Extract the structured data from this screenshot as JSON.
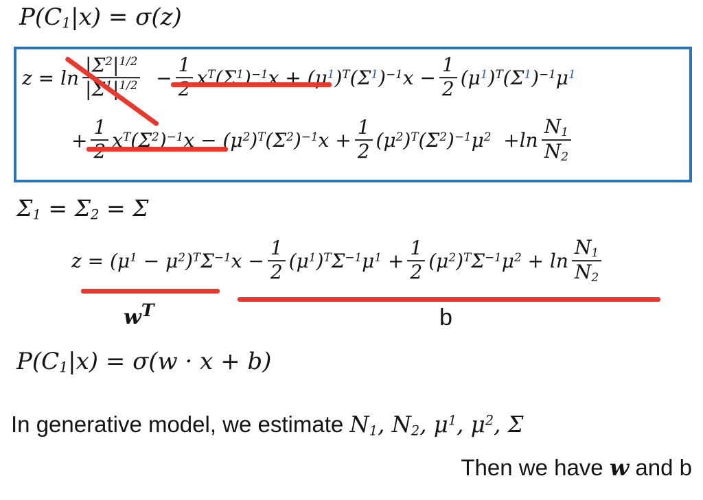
{
  "colors": {
    "annotation_red": "#e8392e",
    "box_border": "#2e74b5",
    "superscript_blue": "#2b5fb0"
  },
  "equations": {
    "posterior_z": [
      {
        "v": "P(C_{1}|x) = σ(z)"
      }
    ],
    "z_full_line1": [
      {
        "v": "z = ln"
      },
      {
        "f": [
          "|Σ^{2}|^{1/2}",
          "|Σ^{1}|^{1/2}"
        ]
      },
      {
        "v": "  −"
      },
      {
        "f": [
          "1",
          "2"
        ]
      },
      {
        "v": "x^{T}(Σ^{1})^{−1}x + (μ^{⟦1⟧})^{T}(Σ^{⟦1⟧})^{−1}x −"
      },
      {
        "f": [
          "1",
          "2"
        ]
      },
      {
        "v": "(μ^{⟦1⟧})^{T}(Σ^{⟦1⟧})^{−1}μ^{⟦1⟧}"
      }
    ],
    "z_full_line2": [
      {
        "v": "+"
      },
      {
        "f": [
          "1",
          "2"
        ]
      },
      {
        "v": "x^{T}(Σ^{2})^{−1}x − (μ^{2})^{T}(Σ^{2})^{−1}x +"
      },
      {
        "f": [
          "1",
          "2"
        ]
      },
      {
        "v": "(μ^{2})^{T}(Σ^{2})^{−1}μ^{2}  +ln"
      },
      {
        "f": [
          "N_{1}",
          "N_{2}"
        ]
      }
    ],
    "sigma_equal": [
      {
        "v": "Σ_{1} = Σ_{2} = Σ"
      }
    ],
    "z_simplified": [
      {
        "v": "z = (μ^{1} − μ^{2})^{T}Σ^{−1}x −"
      },
      {
        "f": [
          "1",
          "2"
        ]
      },
      {
        "v": "(μ^{1})^{T}Σ^{−1}μ^{1} +"
      },
      {
        "f": [
          "1",
          "2"
        ]
      },
      {
        "v": "(μ^{2})^{T}Σ^{−1}μ^{2} + ln"
      },
      {
        "f": [
          "N_{1}",
          "N_{2}"
        ]
      }
    ],
    "posterior_wb": [
      {
        "v": "P(C_{1}|x) = σ(w · x + b)"
      }
    ]
  },
  "labels": {
    "w_transpose": [
      {
        "v": "w^{T}"
      }
    ],
    "b": "b"
  },
  "text": {
    "generative_prefix": "In generative model, we estimate ",
    "generative_math": [
      {
        "v": "N_{1}, N_{2}, μ^{1}, μ^{2}, Σ"
      }
    ],
    "then_prefix": "Then we have ",
    "then_w": "w",
    "then_suffix": " and b"
  }
}
